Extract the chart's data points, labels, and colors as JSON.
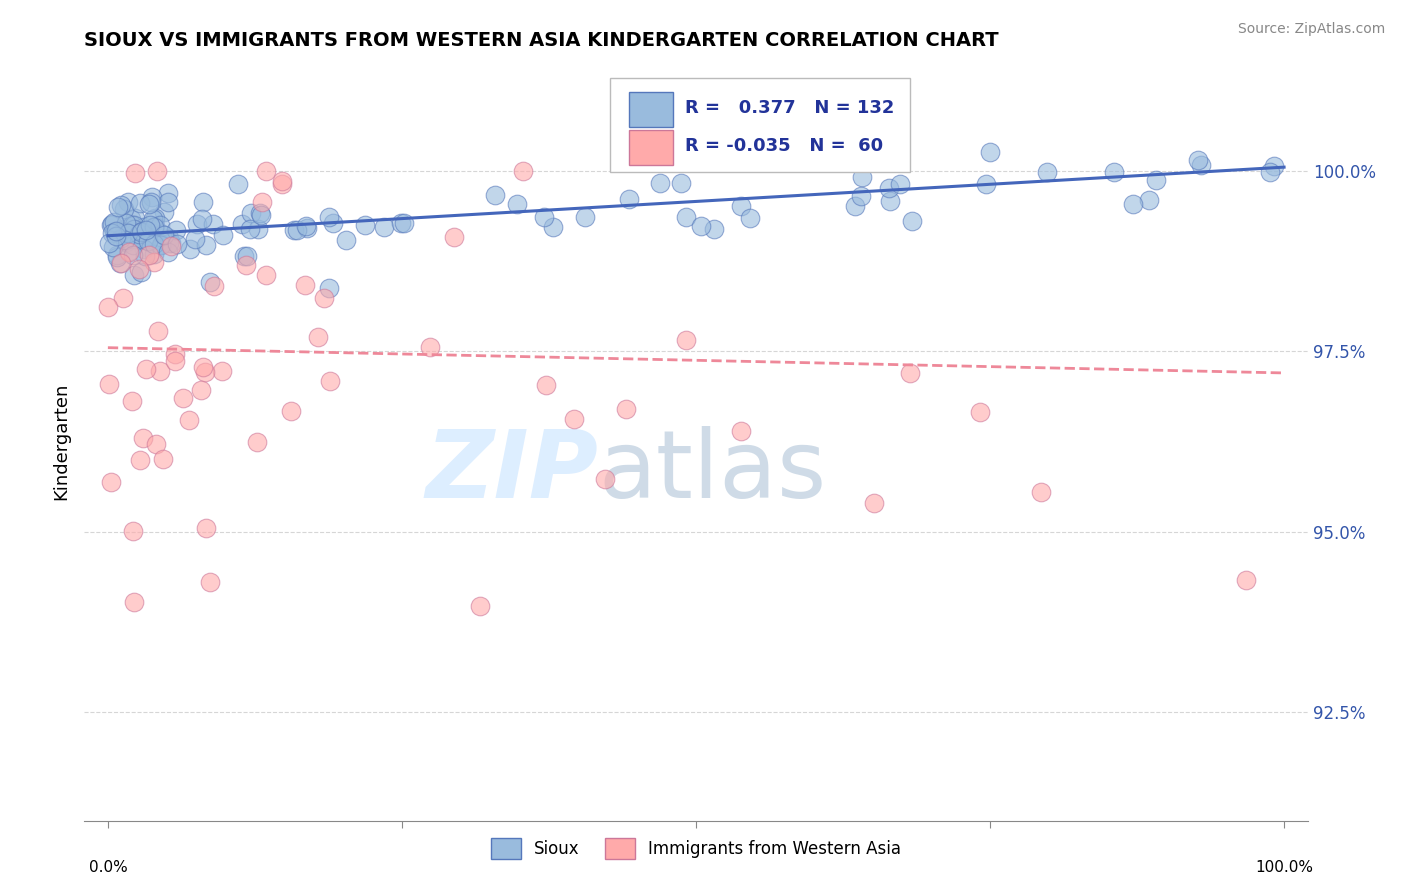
{
  "title": "SIOUX VS IMMIGRANTS FROM WESTERN ASIA KINDERGARTEN CORRELATION CHART",
  "source": "Source: ZipAtlas.com",
  "ylabel": "Kindergarten",
  "xlim": [
    0,
    1
  ],
  "ylim": [
    91.0,
    101.5
  ],
  "blue_R": 0.377,
  "blue_N": 132,
  "pink_R": -0.035,
  "pink_N": 60,
  "blue_color": "#99BBDD",
  "pink_color": "#FFAAAA",
  "blue_edge_color": "#5577BB",
  "pink_edge_color": "#CC7799",
  "blue_line_color": "#4466BB",
  "pink_line_color": "#EE8899",
  "watermark_zip": "ZIP",
  "watermark_atlas": "atlas",
  "watermark_color": "#DDEEFF",
  "ytick_positions": [
    92.5,
    95.0,
    97.5,
    100.0
  ],
  "ytick_labels": [
    "92.5%",
    "95.0%",
    "97.5%",
    "100.0%"
  ],
  "blue_trend_x": [
    0.0,
    1.0
  ],
  "blue_trend_y": [
    99.1,
    100.05
  ],
  "pink_trend_x": [
    0.0,
    1.0
  ],
  "pink_trend_y": [
    97.55,
    97.2
  ]
}
